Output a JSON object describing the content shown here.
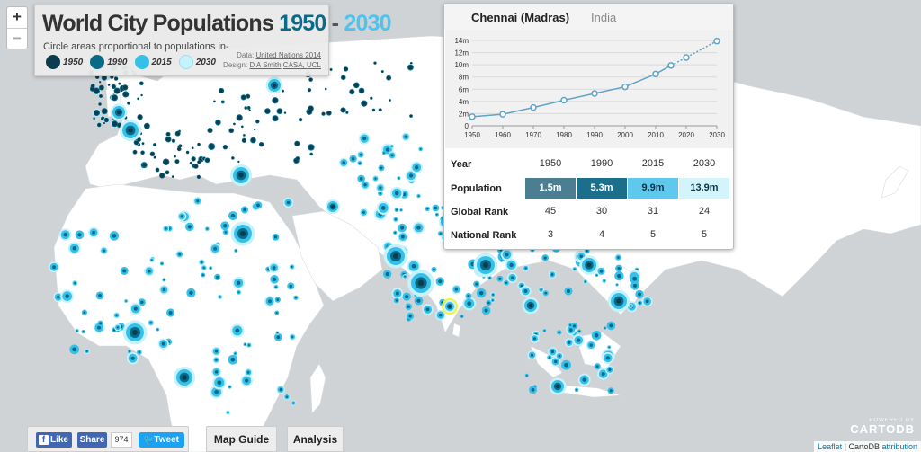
{
  "map": {
    "land_color": "#ffffff",
    "sea_color": "#cfd3d6",
    "colors": {
      "c1950": "#0b3d4f",
      "c1990": "#086a87",
      "c2015": "#35c0ea",
      "c2030": "#c6f2fb"
    }
  },
  "zoom": {
    "in_label": "+",
    "out_label": "−"
  },
  "title_panel": {
    "title_main": "World City Populations",
    "title_start": "1950",
    "title_sep": "-",
    "title_end": "2030",
    "subtitle": "Circle areas proportional to populations in-",
    "legend": [
      {
        "label": "1950",
        "color": "#0b3d4f"
      },
      {
        "label": "1990",
        "color": "#086a87"
      },
      {
        "label": "2015",
        "color": "#35c0ea"
      },
      {
        "label": "2030",
        "color": "#c6f2fb"
      }
    ],
    "credits": {
      "data_prefix": "Data:",
      "data_link": "United Nations 2014",
      "design_prefix": "Design:",
      "design_link": "D A Smith",
      "design_link2": "CASA, UCL"
    }
  },
  "info_panel": {
    "city": "Chennai (Madras)",
    "country": "India",
    "table": {
      "year_header": "Year",
      "years": [
        "1950",
        "1990",
        "2015",
        "2030"
      ],
      "population_header": "Population",
      "population": [
        {
          "value": "1.5m",
          "color": "#4a7e90",
          "text_color": "#ffffff"
        },
        {
          "value": "5.3m",
          "color": "#1c6f8b",
          "text_color": "#ffffff"
        },
        {
          "value": "9.9m",
          "color": "#60c7ed",
          "text_color": "#0c3647"
        },
        {
          "value": "13.9m",
          "color": "#d4f4fb",
          "text_color": "#0c3647"
        }
      ],
      "global_rank_header": "Global Rank",
      "global_rank": [
        "45",
        "30",
        "31",
        "24"
      ],
      "national_rank_header": "National Rank",
      "national_rank": [
        "3",
        "4",
        "5",
        "5"
      ]
    }
  },
  "chart_data": {
    "type": "line",
    "x": [
      1950,
      1960,
      1970,
      1980,
      1990,
      2000,
      2010,
      2015,
      2020,
      2030
    ],
    "y": [
      1.5,
      1.9,
      3.0,
      4.2,
      5.3,
      6.4,
      8.5,
      9.9,
      11.2,
      13.9
    ],
    "projected_from_index": 7,
    "x_ticks": [
      "1950",
      "1960",
      "1970",
      "1980",
      "1990",
      "2000",
      "2010",
      "2020",
      "2030"
    ],
    "y_ticks": [
      "0",
      "2m",
      "4m",
      "6m",
      "8m",
      "10m",
      "12m",
      "14m"
    ],
    "ylim": [
      0,
      14
    ],
    "xlim": [
      1950,
      2030
    ],
    "line_color": "#5ea4c6",
    "grid": true
  },
  "social": {
    "like_label": "Like",
    "share_label": "Share",
    "share_count": "974",
    "tweet_label": "Tweet"
  },
  "buttons": {
    "map_guide": "Map Guide",
    "analysis": "Analysis"
  },
  "cartodb": {
    "powered_by": "POWERED BY",
    "name": "CARTODB"
  },
  "attribution": {
    "leaflet": "Leaflet",
    "separator": " | CartoDB ",
    "attribution_link": "attribution"
  }
}
